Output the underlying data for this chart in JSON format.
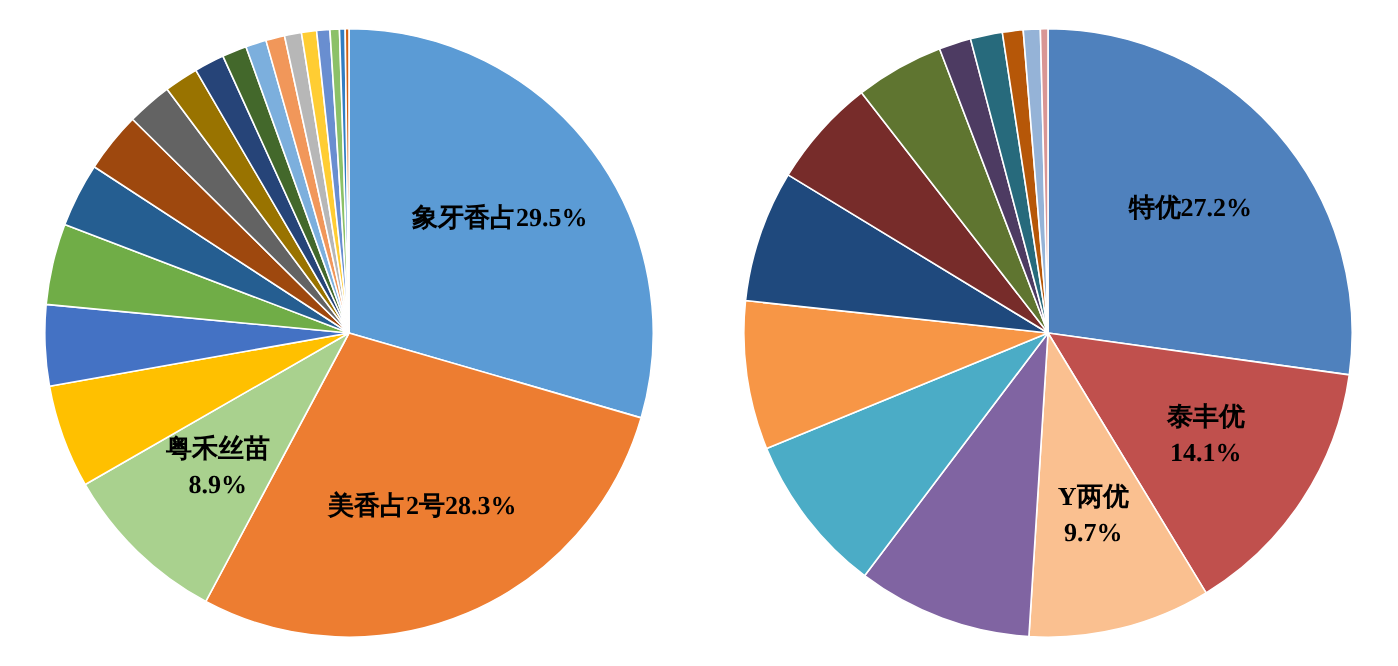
{
  "chart_data": [
    {
      "type": "pie",
      "categories": [
        "象牙香占",
        "美香占2号",
        "粤禾丝苗",
        null,
        null,
        null,
        null,
        null,
        null,
        null,
        null,
        null,
        null,
        null,
        null,
        null,
        null,
        null,
        null,
        null
      ],
      "values": [
        29.5,
        28.3,
        8.9,
        5.5,
        4.3,
        4.3,
        3.4,
        3.2,
        2.4,
        1.8,
        1.6,
        1.3,
        1.1,
        1.0,
        0.9,
        0.8,
        0.7,
        0.5,
        0.3,
        0.2
      ],
      "value_labels": [
        "29.5%",
        "28.3%",
        "8.9%",
        null,
        null,
        null,
        null,
        null,
        null,
        null,
        null,
        null,
        null,
        null,
        null,
        null,
        null,
        null,
        null,
        null
      ],
      "colors": [
        "#5b9bd5",
        "#ed7d31",
        "#a9d18e",
        "#ffc000",
        "#4472c4",
        "#70ad47",
        "#255e91",
        "#9e480e",
        "#636363",
        "#997300",
        "#264478",
        "#43682b",
        "#7cafdd",
        "#f1975a",
        "#b7b7b7",
        "#ffcd33",
        "#698ed0",
        "#8cc168",
        "#327dc2",
        "#d26012"
      ],
      "legend": false
    },
    {
      "type": "pie",
      "categories": [
        "特优",
        "泰丰优",
        "Y两优",
        null,
        null,
        null,
        null,
        null,
        null,
        null,
        null,
        null,
        null,
        null
      ],
      "values": [
        27.2,
        14.1,
        9.7,
        9.3,
        8.5,
        7.9,
        7.0,
        5.8,
        4.7,
        1.7,
        1.7,
        1.1,
        0.9,
        0.4
      ],
      "value_labels": [
        "27.2%",
        "14.1%",
        "9.7%",
        null,
        null,
        null,
        null,
        null,
        null,
        null,
        null,
        null,
        null,
        null
      ],
      "colors": [
        "#4f81bd",
        "#c0504d",
        "#fac090",
        "#8064a2",
        "#4bacc6",
        "#f79646",
        "#1f497d",
        "#772c2a",
        "#5f7530",
        "#4d3b62",
        "#276a7c",
        "#b65708",
        "#95b3d7",
        "#d99694"
      ],
      "legend": false
    }
  ]
}
